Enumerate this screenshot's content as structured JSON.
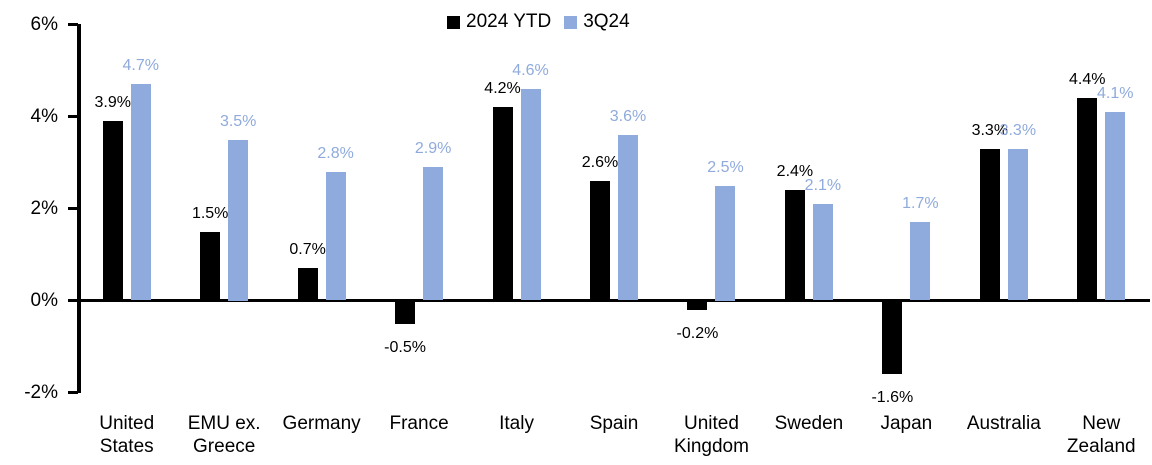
{
  "chart_data": {
    "type": "bar",
    "title": "",
    "categories": [
      "United States",
      "EMU ex. Greece",
      "Germany",
      "France",
      "Italy",
      "Spain",
      "United Kingdom",
      "Sweden",
      "Japan",
      "Australia",
      "New Zealand"
    ],
    "series": [
      {
        "name": "2024 YTD",
        "color": "#000000",
        "values": [
          3.9,
          1.5,
          0.7,
          -0.5,
          4.2,
          2.6,
          -0.2,
          2.4,
          -1.6,
          3.3,
          4.4
        ],
        "labels": [
          "3.9%",
          "1.5%",
          "0.7%",
          "-0.5%",
          "4.2%",
          "2.6%",
          "-0.2%",
          "2.4%",
          "-1.6%",
          "3.3%",
          "4.4%"
        ]
      },
      {
        "name": "3Q24",
        "color": "#8FAADC",
        "values": [
          4.7,
          3.5,
          2.8,
          2.9,
          4.6,
          3.6,
          2.5,
          2.1,
          1.7,
          3.3,
          4.1
        ],
        "labels": [
          "4.7%",
          "3.5%",
          "2.8%",
          "2.9%",
          "4.6%",
          "3.6%",
          "2.5%",
          "2.1%",
          "1.7%",
          "3.3%",
          "4.1%"
        ]
      }
    ],
    "y_axis": {
      "min": -2,
      "max": 6,
      "step": 2,
      "tick_values": [
        6,
        4,
        2,
        0,
        -2
      ],
      "tick_labels": [
        "6%",
        "4%",
        "2%",
        "0%",
        "-2%"
      ]
    },
    "legend_position": "top",
    "grid": false
  }
}
